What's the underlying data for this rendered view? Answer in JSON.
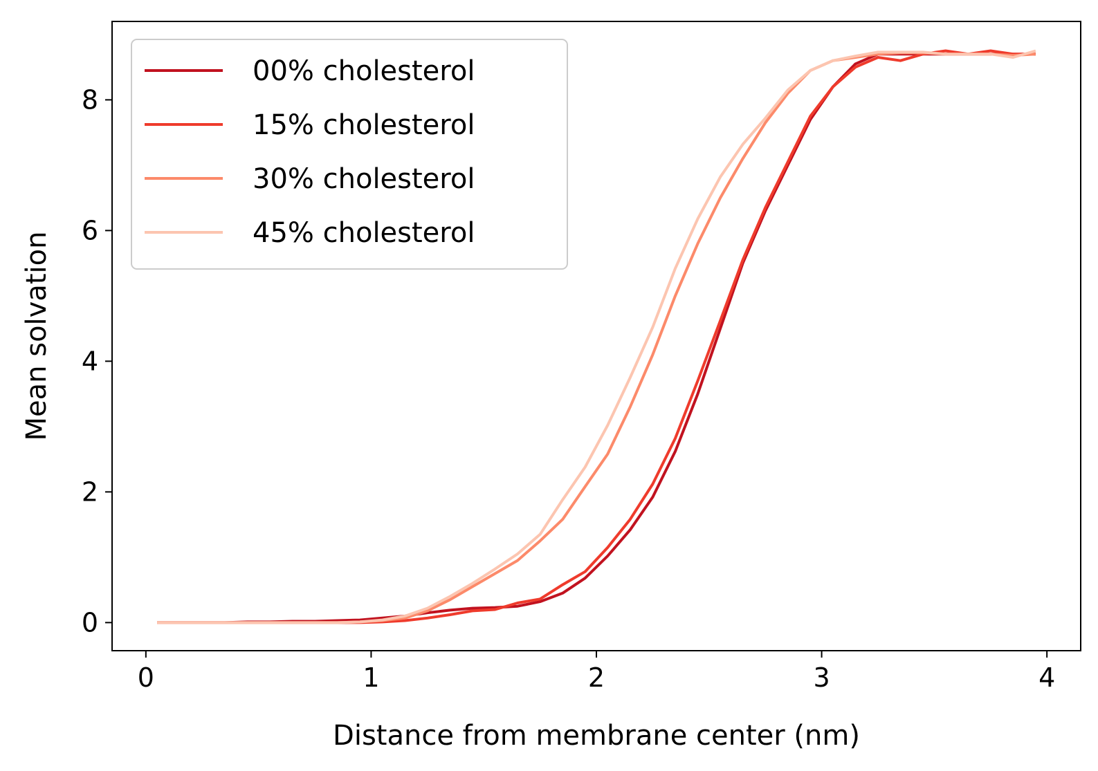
{
  "chart_data": {
    "type": "line",
    "title": "",
    "xlabel": "Distance from membrane center (nm)",
    "ylabel": "Mean solvation",
    "xlim": [
      -0.15,
      4.15
    ],
    "ylim": [
      -0.43,
      9.2
    ],
    "xticks": [
      0,
      1,
      2,
      3,
      4
    ],
    "yticks": [
      0,
      2,
      4,
      6,
      8
    ],
    "grid": false,
    "legend_position": "top-left",
    "x": [
      0.05,
      0.15,
      0.25,
      0.35,
      0.45,
      0.55,
      0.65,
      0.75,
      0.85,
      0.95,
      1.05,
      1.15,
      1.25,
      1.35,
      1.45,
      1.55,
      1.65,
      1.75,
      1.85,
      1.95,
      2.05,
      2.15,
      2.25,
      2.35,
      2.45,
      2.55,
      2.65,
      2.75,
      2.85,
      2.95,
      3.05,
      3.15,
      3.25,
      3.35,
      3.45,
      3.55,
      3.65,
      3.75,
      3.85,
      3.95
    ],
    "series": [
      {
        "name": "00% cholesterol",
        "color": "#c1121f",
        "values": [
          0.0,
          0.0,
          0.0,
          0.0,
          0.01,
          0.01,
          0.02,
          0.02,
          0.03,
          0.04,
          0.07,
          0.1,
          0.15,
          0.19,
          0.22,
          0.23,
          0.25,
          0.32,
          0.45,
          0.68,
          1.02,
          1.42,
          1.92,
          2.62,
          3.5,
          4.5,
          5.5,
          6.3,
          7.0,
          7.7,
          8.2,
          8.55,
          8.7,
          8.7,
          8.7,
          8.7,
          8.7,
          8.7,
          8.7,
          8.7
        ]
      },
      {
        "name": "15% cholesterol",
        "color": "#ef3b2c",
        "values": [
          0.0,
          0.0,
          0.0,
          0.0,
          0.0,
          0.0,
          0.0,
          0.0,
          0.0,
          0.0,
          0.01,
          0.03,
          0.07,
          0.12,
          0.18,
          0.2,
          0.3,
          0.36,
          0.58,
          0.78,
          1.15,
          1.58,
          2.12,
          2.82,
          3.7,
          4.62,
          5.55,
          6.35,
          7.05,
          7.75,
          8.2,
          8.5,
          8.65,
          8.6,
          8.7,
          8.75,
          8.7,
          8.75,
          8.7,
          8.7
        ]
      },
      {
        "name": "30% cholesterol",
        "color": "#fc8a6a",
        "values": [
          0.0,
          0.0,
          0.0,
          0.0,
          0.0,
          0.0,
          0.0,
          0.0,
          0.0,
          0.01,
          0.03,
          0.07,
          0.18,
          0.35,
          0.55,
          0.75,
          0.95,
          1.25,
          1.58,
          2.08,
          2.58,
          3.3,
          4.1,
          5.0,
          5.8,
          6.5,
          7.1,
          7.65,
          8.1,
          8.45,
          8.6,
          8.65,
          8.7,
          8.72,
          8.72,
          8.7,
          8.7,
          8.7,
          8.68,
          8.7
        ]
      },
      {
        "name": "45% cholesterol",
        "color": "#fcc5b0",
        "values": [
          0.0,
          0.0,
          0.0,
          0.0,
          0.0,
          0.0,
          0.0,
          0.0,
          0.0,
          0.01,
          0.04,
          0.1,
          0.22,
          0.4,
          0.6,
          0.82,
          1.05,
          1.35,
          1.88,
          2.38,
          3.02,
          3.75,
          4.52,
          5.42,
          6.18,
          6.82,
          7.32,
          7.72,
          8.15,
          8.45,
          8.6,
          8.67,
          8.73,
          8.73,
          8.73,
          8.7,
          8.7,
          8.7,
          8.65,
          8.75
        ]
      }
    ]
  }
}
